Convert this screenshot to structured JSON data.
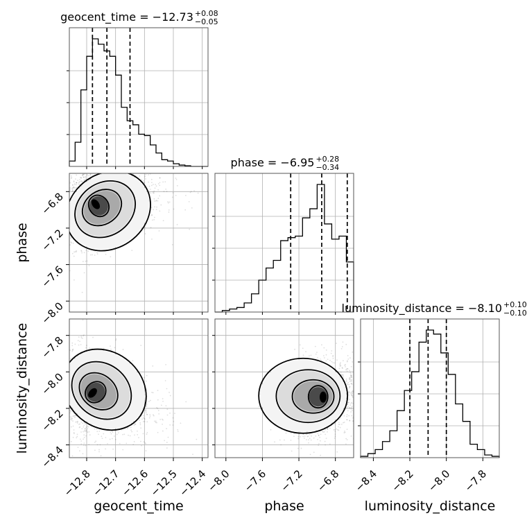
{
  "chart_data": {
    "type": "corner",
    "parameters": [
      "geocent_time",
      "phase",
      "luminosity_distance"
    ],
    "axis_labels": {
      "geocent_time": "geocent_time",
      "phase": "phase",
      "luminosity_distance": "luminosity_distance"
    },
    "titles": [
      {
        "param": "geocent_time",
        "prefix": "geocent_time = −12.73",
        "plus": "+0.08",
        "minus": "−0.05"
      },
      {
        "param": "phase",
        "prefix": "phase = −6.95",
        "plus": "+0.28",
        "minus": "−0.34"
      },
      {
        "param": "luminosity_distance",
        "prefix": "luminosity_distance = −8.10",
        "plus": "+0.10",
        "minus": "−0.10"
      }
    ],
    "ranges": {
      "geocent_time": [
        -12.86,
        -12.38
      ],
      "phase": [
        -8.12,
        -6.6
      ],
      "luminosity_distance": [
        -8.47,
        -7.71
      ]
    },
    "ticks": {
      "geocent_time": [
        -12.8,
        -12.7,
        -12.6,
        -12.5,
        -12.4
      ],
      "phase": [
        -8.0,
        -7.6,
        -7.2,
        -6.8
      ],
      "luminosity_distance": [
        -8.4,
        -8.2,
        -8.0,
        -7.8
      ]
    },
    "tick_labels": {
      "geocent_time": [
        "−12.8",
        "−12.7",
        "−12.6",
        "−12.5",
        "−12.4"
      ],
      "phase": [
        "−8.0",
        "−7.6",
        "−7.2",
        "−6.8"
      ],
      "luminosity_distance": [
        "−8.4",
        "−8.2",
        "−8.0",
        "−7.8"
      ]
    },
    "quantiles": {
      "geocent_time": [
        -12.78,
        -12.73,
        -12.65
      ],
      "phase": [
        -7.29,
        -6.95,
        -6.67
      ],
      "luminosity_distance": [
        -8.2,
        -8.1,
        -8.0
      ]
    },
    "histograms": {
      "geocent_time": {
        "edges": [
          -12.86,
          -12.84,
          -12.82,
          -12.8,
          -12.78,
          -12.76,
          -12.74,
          -12.72,
          -12.7,
          -12.68,
          -12.66,
          -12.64,
          -12.62,
          -12.6,
          -12.58,
          -12.56,
          -12.54,
          -12.52,
          -12.5,
          -12.48,
          -12.46,
          -12.44,
          -12.42,
          -12.4,
          -12.38
        ],
        "counts": [
          0.04,
          0.18,
          0.57,
          0.82,
          0.95,
          0.91,
          0.86,
          0.82,
          0.68,
          0.44,
          0.34,
          0.31,
          0.24,
          0.23,
          0.16,
          0.1,
          0.05,
          0.04,
          0.02,
          0.01,
          0.005,
          0.0,
          0.0,
          0.0
        ]
      },
      "phase": {
        "edges": [
          -8.12,
          -8.04,
          -7.96,
          -7.88,
          -7.8,
          -7.72,
          -7.64,
          -7.56,
          -7.48,
          -7.4,
          -7.32,
          -7.24,
          -7.16,
          -7.08,
          -7.0,
          -6.92,
          -6.84,
          -6.76,
          -6.68,
          -6.6
        ],
        "counts": [
          0.0,
          0.01,
          0.02,
          0.03,
          0.06,
          0.12,
          0.21,
          0.29,
          0.34,
          0.47,
          0.49,
          0.5,
          0.62,
          0.68,
          0.84,
          0.58,
          0.48,
          0.5,
          0.33
        ]
      },
      "luminosity_distance": {
        "edges": [
          -8.47,
          -8.43,
          -8.39,
          -8.35,
          -8.31,
          -8.27,
          -8.23,
          -8.19,
          -8.15,
          -8.11,
          -8.07,
          -8.03,
          -7.99,
          -7.95,
          -7.91,
          -7.87,
          -7.83,
          -7.79,
          -7.75,
          -7.71
        ],
        "counts": [
          0.01,
          0.03,
          0.06,
          0.12,
          0.2,
          0.35,
          0.5,
          0.64,
          0.86,
          0.95,
          0.92,
          0.78,
          0.62,
          0.4,
          0.27,
          0.1,
          0.06,
          0.02,
          0.01
        ]
      }
    },
    "panels": [
      {
        "x": "geocent_time",
        "y": "phase",
        "mode": {
          "x": -12.78,
          "y": -6.92
        }
      },
      {
        "x": "geocent_time",
        "y": "luminosity_distance",
        "mode": {
          "x": -12.79,
          "y": -8.12
        }
      },
      {
        "x": "phase",
        "y": "luminosity_distance",
        "mode": {
          "x": -6.88,
          "y": -8.14
        }
      }
    ]
  }
}
